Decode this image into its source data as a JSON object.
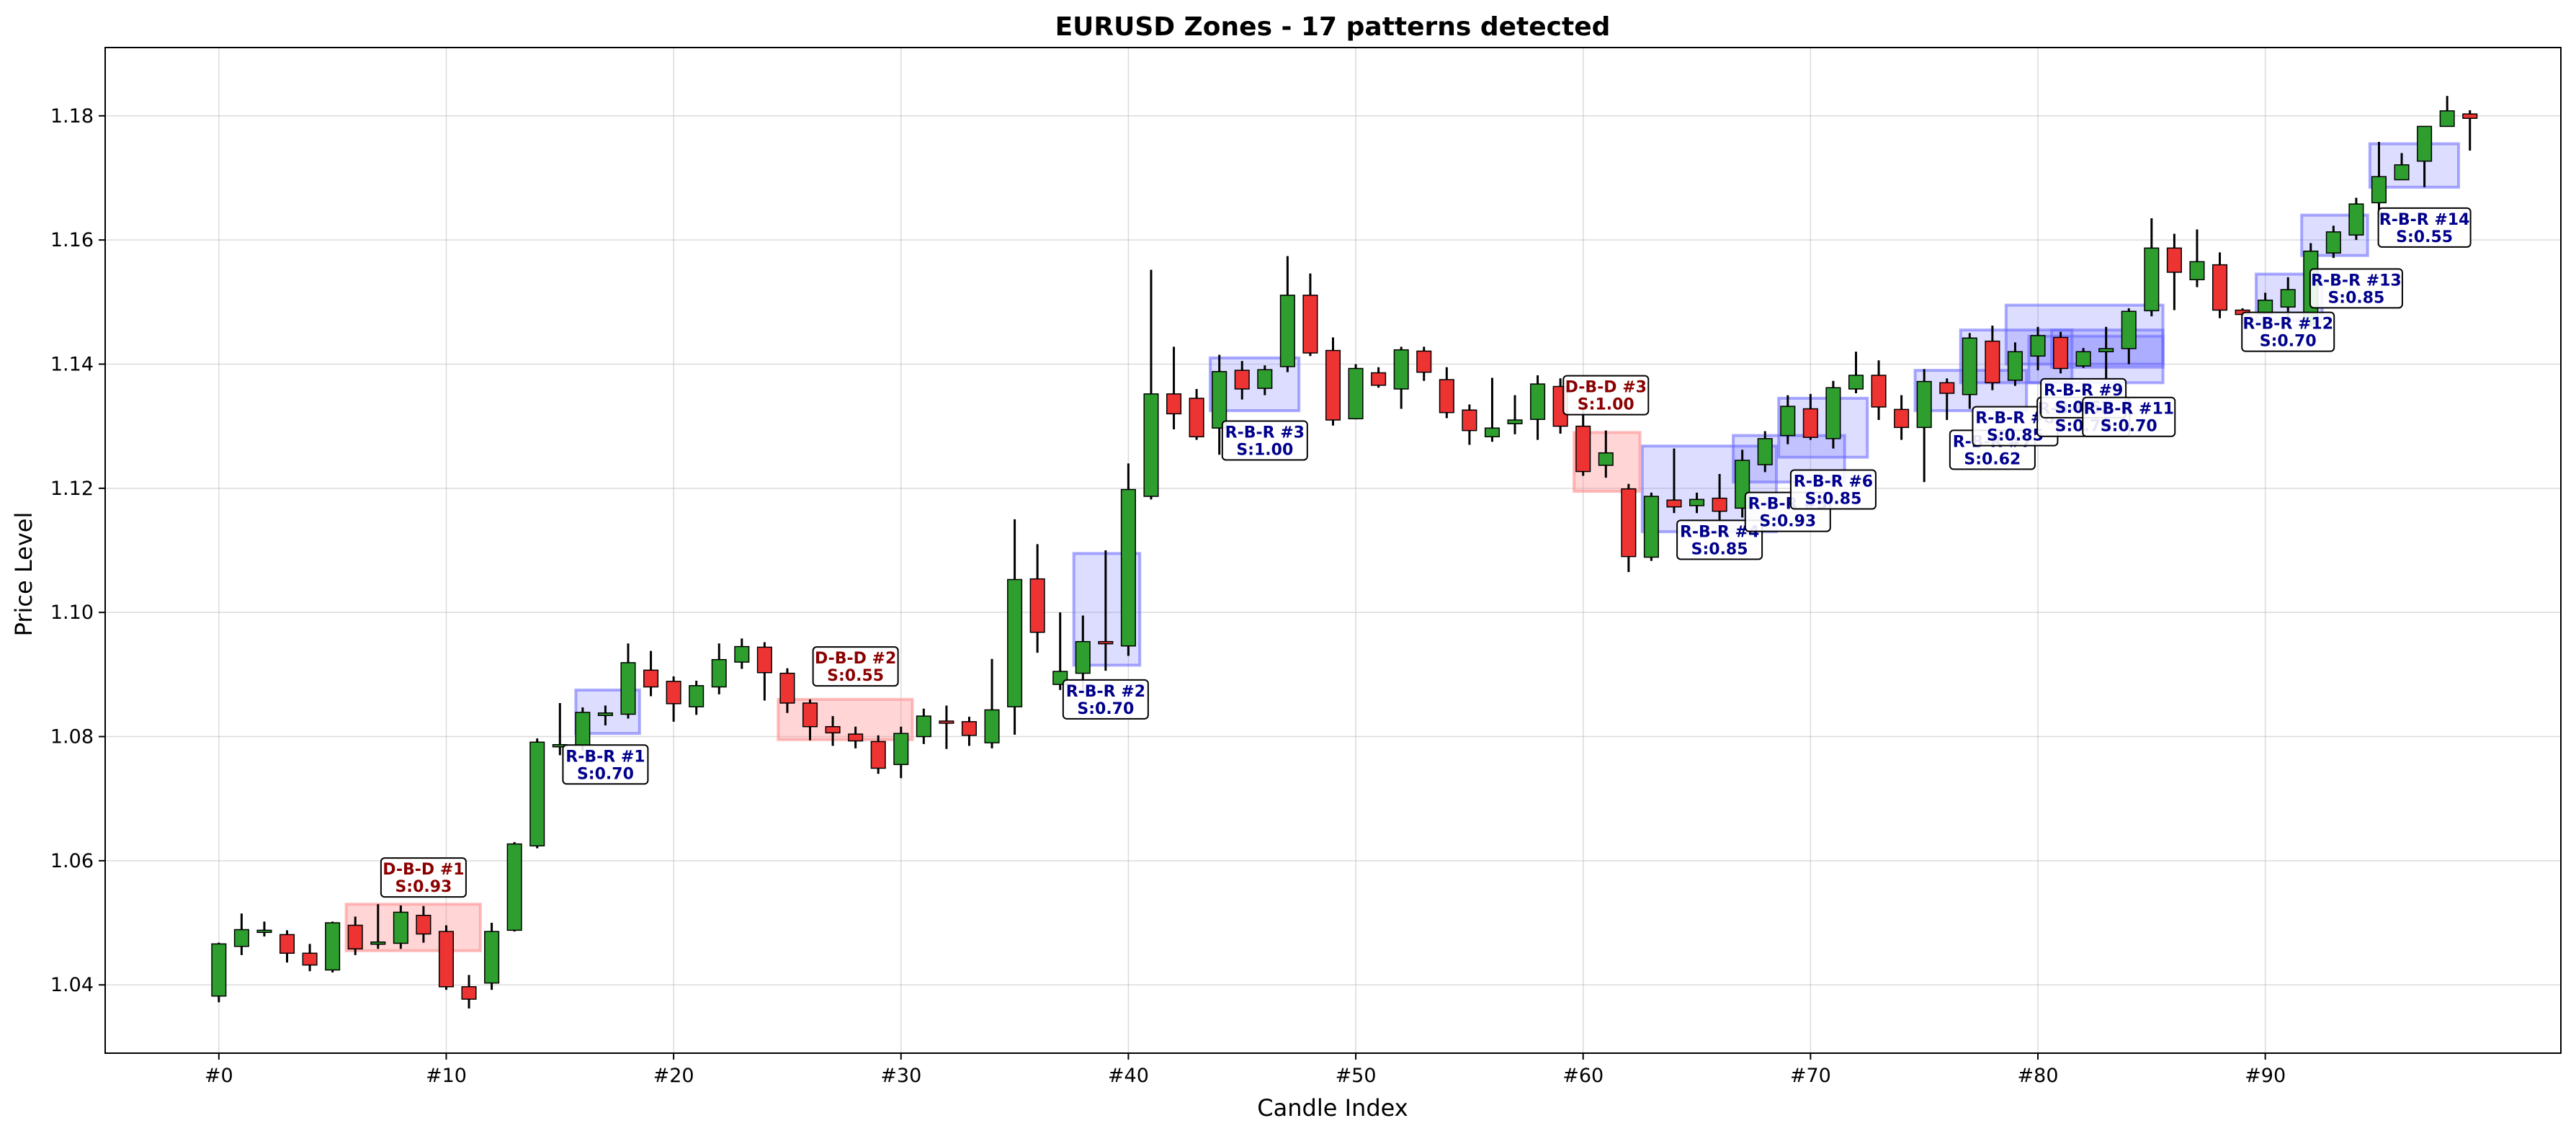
{
  "chart_data": {
    "type": "candlestick",
    "title": "EURUSD Zones - 17 patterns detected",
    "xlabel": "Candle Index",
    "ylabel": "Price Level",
    "xlim": [
      -5,
      103
    ],
    "ylim": [
      1.029,
      1.191
    ],
    "grid": true,
    "colors": {
      "bullish": "#2e9e2e",
      "bearish": "#ee3333",
      "rbr_zone": "#6666ff",
      "dbd_zone": "#ff8888",
      "rbr_text": "#00008b",
      "dbd_text": "#8b0000"
    },
    "x_ticks": [
      {
        "value": 0,
        "label": "#0"
      },
      {
        "value": 10,
        "label": "#10"
      },
      {
        "value": 20,
        "label": "#20"
      },
      {
        "value": 30,
        "label": "#30"
      },
      {
        "value": 40,
        "label": "#40"
      },
      {
        "value": 50,
        "label": "#50"
      },
      {
        "value": 60,
        "label": "#60"
      },
      {
        "value": 70,
        "label": "#70"
      },
      {
        "value": 80,
        "label": "#80"
      },
      {
        "value": 90,
        "label": "#90"
      }
    ],
    "y_ticks": [
      {
        "value": 1.04,
        "label": "1.04"
      },
      {
        "value": 1.06,
        "label": "1.06"
      },
      {
        "value": 1.08,
        "label": "1.08"
      },
      {
        "value": 1.1,
        "label": "1.10"
      },
      {
        "value": 1.12,
        "label": "1.12"
      },
      {
        "value": 1.14,
        "label": "1.14"
      },
      {
        "value": 1.16,
        "label": "1.16"
      },
      {
        "value": 1.18,
        "label": "1.18"
      }
    ],
    "candles": [
      [
        0,
        1.0382,
        1.0466,
        1.0372,
        1.0468
      ],
      [
        1,
        1.0462,
        1.0489,
        1.0448,
        1.0515
      ],
      [
        2,
        1.0486,
        1.0488,
        1.0478,
        1.0502
      ],
      [
        3,
        1.0481,
        1.0451,
        1.0436,
        1.0488
      ],
      [
        4,
        1.0451,
        1.0432,
        1.0422,
        1.0466
      ],
      [
        5,
        1.0424,
        1.05,
        1.042,
        1.0502
      ],
      [
        6,
        1.0496,
        1.0458,
        1.0448,
        1.051
      ],
      [
        7,
        1.0466,
        1.0469,
        1.0458,
        1.053
      ],
      [
        8,
        1.0467,
        1.0517,
        1.0458,
        1.0528
      ],
      [
        9,
        1.0512,
        1.0482,
        1.0468,
        1.0527
      ],
      [
        10,
        1.0486,
        1.0397,
        1.0392,
        1.0496
      ],
      [
        11,
        1.0397,
        1.0377,
        1.0362,
        1.0416
      ],
      [
        12,
        1.0403,
        1.0486,
        1.0392,
        1.05
      ],
      [
        13,
        1.0488,
        1.0627,
        1.0486,
        1.063
      ],
      [
        14,
        1.0624,
        1.0791,
        1.062,
        1.0797
      ],
      [
        15,
        1.0784,
        1.0787,
        1.077,
        1.0854
      ],
      [
        16,
        1.0786,
        1.0839,
        1.0777,
        1.0847
      ],
      [
        17,
        1.0834,
        1.0838,
        1.0818,
        1.085
      ],
      [
        18,
        1.0836,
        1.0919,
        1.0829,
        1.095
      ],
      [
        19,
        1.0907,
        1.088,
        1.0865,
        1.0938
      ],
      [
        20,
        1.0889,
        1.0853,
        1.0824,
        1.0897
      ],
      [
        21,
        1.0848,
        1.0882,
        1.0835,
        1.089
      ],
      [
        22,
        1.088,
        1.0924,
        1.0868,
        1.095
      ],
      [
        23,
        1.092,
        1.0945,
        1.0909,
        1.0958
      ],
      [
        24,
        1.0944,
        1.0903,
        1.0858,
        1.0952
      ],
      [
        25,
        1.0902,
        1.0854,
        1.0838,
        1.091
      ],
      [
        26,
        1.0854,
        1.0816,
        1.0794,
        1.086
      ],
      [
        27,
        1.0816,
        1.0806,
        1.0785,
        1.0833
      ],
      [
        28,
        1.0804,
        1.0793,
        1.0781,
        1.0816
      ],
      [
        29,
        1.0792,
        1.0749,
        1.074,
        1.0802
      ],
      [
        30,
        1.0755,
        1.0805,
        1.0733,
        1.0816
      ],
      [
        31,
        1.08,
        1.0833,
        1.0788,
        1.0845
      ],
      [
        32,
        1.0825,
        1.0822,
        1.078,
        1.085
      ],
      [
        33,
        1.0824,
        1.0802,
        1.0785,
        1.0832
      ],
      [
        34,
        1.079,
        1.0843,
        1.0781,
        1.0925
      ],
      [
        35,
        1.0848,
        1.1053,
        1.0803,
        1.115
      ],
      [
        36,
        1.1054,
        1.0968,
        1.0935,
        1.111
      ],
      [
        37,
        1.0884,
        1.0905,
        1.0875,
        1.1
      ],
      [
        38,
        1.0902,
        1.0953,
        1.0875,
        1.0995
      ],
      [
        39,
        1.0953,
        1.0951,
        1.0906,
        1.11
      ],
      [
        40,
        1.0946,
        1.1198,
        1.093,
        1.124
      ],
      [
        41,
        1.1187,
        1.1352,
        1.1182,
        1.1552
      ],
      [
        42,
        1.1352,
        1.132,
        1.1295,
        1.1428
      ],
      [
        43,
        1.1345,
        1.1283,
        1.1278,
        1.136
      ],
      [
        44,
        1.1297,
        1.1388,
        1.1254,
        1.1415
      ],
      [
        45,
        1.139,
        1.136,
        1.1343,
        1.1405
      ],
      [
        46,
        1.1361,
        1.1391,
        1.135,
        1.1398
      ],
      [
        47,
        1.1396,
        1.1511,
        1.1387,
        1.1574
      ],
      [
        48,
        1.1511,
        1.1418,
        1.1413,
        1.1546
      ],
      [
        49,
        1.1422,
        1.131,
        1.1301,
        1.1443
      ],
      [
        50,
        1.1312,
        1.1393,
        1.1311,
        1.14
      ],
      [
        51,
        1.1386,
        1.1366,
        1.1362,
        1.1395
      ],
      [
        52,
        1.136,
        1.1423,
        1.1328,
        1.1428
      ],
      [
        53,
        1.1421,
        1.1387,
        1.1373,
        1.1428
      ],
      [
        54,
        1.1375,
        1.1322,
        1.1313,
        1.1395
      ],
      [
        55,
        1.1326,
        1.1293,
        1.127,
        1.1335
      ],
      [
        56,
        1.1283,
        1.1297,
        1.1275,
        1.1378
      ],
      [
        57,
        1.1304,
        1.131,
        1.1287,
        1.135
      ],
      [
        58,
        1.1311,
        1.1368,
        1.1278,
        1.1382
      ],
      [
        59,
        1.1364,
        1.13,
        1.1288,
        1.1377
      ],
      [
        60,
        1.13,
        1.1227,
        1.122,
        1.1337
      ],
      [
        61,
        1.1237,
        1.1257,
        1.1217,
        1.1293
      ],
      [
        62,
        1.1199,
        1.109,
        1.1065,
        1.1207
      ],
      [
        63,
        1.1089,
        1.1187,
        1.1083,
        1.1193
      ],
      [
        64,
        1.1181,
        1.117,
        1.116,
        1.1264
      ],
      [
        65,
        1.1172,
        1.1182,
        1.116,
        1.1193
      ],
      [
        66,
        1.1184,
        1.1163,
        1.1148,
        1.1223
      ],
      [
        67,
        1.1168,
        1.1245,
        1.1153,
        1.1262
      ],
      [
        68,
        1.1238,
        1.128,
        1.1226,
        1.1292
      ],
      [
        69,
        1.1285,
        1.1332,
        1.1271,
        1.135
      ],
      [
        70,
        1.1328,
        1.1282,
        1.1278,
        1.1352
      ],
      [
        71,
        1.128,
        1.1362,
        1.1264,
        1.1373
      ],
      [
        72,
        1.136,
        1.1382,
        1.1353,
        1.142
      ],
      [
        73,
        1.1382,
        1.1331,
        1.131,
        1.1406
      ],
      [
        74,
        1.1327,
        1.1298,
        1.1278,
        1.135
      ],
      [
        75,
        1.1298,
        1.1372,
        1.121,
        1.1392
      ],
      [
        76,
        1.137,
        1.1353,
        1.131,
        1.1377
      ],
      [
        77,
        1.1351,
        1.1442,
        1.1328,
        1.145
      ],
      [
        78,
        1.1437,
        1.137,
        1.1358,
        1.1462
      ],
      [
        79,
        1.1374,
        1.142,
        1.1365,
        1.1435
      ],
      [
        80,
        1.1413,
        1.1446,
        1.139,
        1.146
      ],
      [
        81,
        1.1443,
        1.1393,
        1.1385,
        1.1452
      ],
      [
        82,
        1.1397,
        1.142,
        1.1394,
        1.1426
      ],
      [
        83,
        1.142,
        1.1425,
        1.1377,
        1.146
      ],
      [
        84,
        1.1425,
        1.1485,
        1.14,
        1.149
      ],
      [
        85,
        1.1486,
        1.1587,
        1.1477,
        1.1635
      ],
      [
        86,
        1.1587,
        1.1548,
        1.1487,
        1.161
      ],
      [
        87,
        1.1536,
        1.1565,
        1.1524,
        1.1617
      ],
      [
        88,
        1.156,
        1.1487,
        1.1474,
        1.158
      ],
      [
        89,
        1.1487,
        1.148,
        1.1465,
        1.149
      ],
      [
        90,
        1.1481,
        1.1503,
        1.148,
        1.1515
      ],
      [
        91,
        1.1492,
        1.152,
        1.1476,
        1.154
      ],
      [
        92,
        1.1465,
        1.1582,
        1.146,
        1.1595
      ],
      [
        93,
        1.1579,
        1.1613,
        1.1571,
        1.1623
      ],
      [
        94,
        1.1608,
        1.1658,
        1.16,
        1.1668
      ],
      [
        95,
        1.166,
        1.1702,
        1.1637,
        1.1758
      ],
      [
        96,
        1.1697,
        1.1721,
        1.1697,
        1.174
      ],
      [
        97,
        1.1727,
        1.1783,
        1.1685,
        1.1783
      ],
      [
        98,
        1.1783,
        1.1808,
        1.1783,
        1.1832
      ],
      [
        99,
        1.1803,
        1.1796,
        1.1744,
        1.1809
      ]
    ],
    "zones": [
      {
        "type": "rbr",
        "x0": 15.7,
        "x1": 18.5,
        "y0": 1.0805,
        "y1": 1.0875
      },
      {
        "type": "rbr",
        "x0": 37.6,
        "x1": 40.5,
        "y0": 1.0915,
        "y1": 1.1095
      },
      {
        "type": "rbr",
        "x0": 43.6,
        "x1": 47.5,
        "y0": 1.1325,
        "y1": 1.141
      },
      {
        "type": "rbr",
        "x0": 62.6,
        "x1": 68.5,
        "y0": 1.113,
        "y1": 1.1268
      },
      {
        "type": "rbr",
        "x0": 66.6,
        "x1": 71.5,
        "y0": 1.121,
        "y1": 1.1285
      },
      {
        "type": "rbr",
        "x0": 68.6,
        "x1": 72.5,
        "y0": 1.125,
        "y1": 1.1345
      },
      {
        "type": "rbr",
        "x0": 74.6,
        "x1": 79.5,
        "y0": 1.1325,
        "y1": 1.139
      },
      {
        "type": "rbr",
        "x0": 76.6,
        "x1": 81.5,
        "y0": 1.137,
        "y1": 1.1455
      },
      {
        "type": "rbr",
        "x0": 78.6,
        "x1": 85.5,
        "y0": 1.14,
        "y1": 1.1495
      },
      {
        "type": "rbr",
        "x0": 79.6,
        "x1": 85.5,
        "y0": 1.137,
        "y1": 1.1445
      },
      {
        "type": "rbr",
        "x0": 80.6,
        "x1": 85.5,
        "y0": 1.1395,
        "y1": 1.1455
      },
      {
        "type": "rbr",
        "x0": 89.6,
        "x1": 92.5,
        "y0": 1.147,
        "y1": 1.1545
      },
      {
        "type": "rbr",
        "x0": 91.6,
        "x1": 94.5,
        "y0": 1.1575,
        "y1": 1.164
      },
      {
        "type": "rbr",
        "x0": 94.6,
        "x1": 98.5,
        "y0": 1.1685,
        "y1": 1.1755
      },
      {
        "type": "dbd",
        "x0": 5.6,
        "x1": 11.5,
        "y0": 1.0455,
        "y1": 1.053
      },
      {
        "type": "dbd",
        "x0": 24.6,
        "x1": 30.5,
        "y0": 1.0795,
        "y1": 1.086
      },
      {
        "type": "dbd",
        "x0": 59.6,
        "x1": 62.5,
        "y0": 1.1195,
        "y1": 1.129
      }
    ],
    "annotations": [
      {
        "type": "dbd",
        "line1": "D-B-D #1",
        "line2": "S:0.93",
        "x": 9.0,
        "y": 1.0573
      },
      {
        "type": "rbr",
        "line1": "R-B-R #1",
        "line2": "S:0.70",
        "x": 17.0,
        "y": 1.0755
      },
      {
        "type": "dbd",
        "line1": "D-B-D #2",
        "line2": "S:0.55",
        "x": 28.0,
        "y": 1.0913
      },
      {
        "type": "rbr",
        "line1": "R-B-R #2",
        "line2": "S:0.70",
        "x": 39.0,
        "y": 1.086
      },
      {
        "type": "rbr",
        "line1": "R-B-R #3",
        "line2": "S:1.00",
        "x": 46.0,
        "y": 1.1277
      },
      {
        "type": "dbd",
        "line1": "D-B-D #3",
        "line2": "S:1.00",
        "x": 61.0,
        "y": 1.135
      },
      {
        "type": "rbr",
        "line1": "R-B-R #4",
        "line2": "S:0.85",
        "x": 66.0,
        "y": 1.1117
      },
      {
        "type": "rbr",
        "line1": "R-B-R #5",
        "line2": "S:0.93",
        "x": 69.0,
        "y": 1.1162
      },
      {
        "type": "rbr",
        "line1": "R-B-R #6",
        "line2": "S:0.85",
        "x": 71.0,
        "y": 1.1198
      },
      {
        "type": "rbr",
        "line1": "R-B-R #7",
        "line2": "S:0.62",
        "x": 78.0,
        "y": 1.1262
      },
      {
        "type": "rbr",
        "line1": "R-B-R #8",
        "line2": "S:0.85",
        "x": 79.0,
        "y": 1.13
      },
      {
        "type": "rbr",
        "line1": "R-B-R #10",
        "line2": "S:0.70",
        "x": 82.0,
        "y": 1.1315
      },
      {
        "type": "rbr",
        "line1": "R-B-R #9",
        "line2": "S:0.62",
        "x": 82.0,
        "y": 1.1345
      },
      {
        "type": "rbr",
        "line1": "R-B-R #11",
        "line2": "S:0.70",
        "x": 84.0,
        "y": 1.1315
      },
      {
        "type": "rbr",
        "line1": "R-B-R #12",
        "line2": "S:0.70",
        "x": 91.0,
        "y": 1.1452
      },
      {
        "type": "rbr",
        "line1": "R-B-R #13",
        "line2": "S:0.85",
        "x": 94.0,
        "y": 1.1522
      },
      {
        "type": "rbr",
        "line1": "R-B-R #14",
        "line2": "S:0.55",
        "x": 97.0,
        "y": 1.162
      }
    ]
  }
}
